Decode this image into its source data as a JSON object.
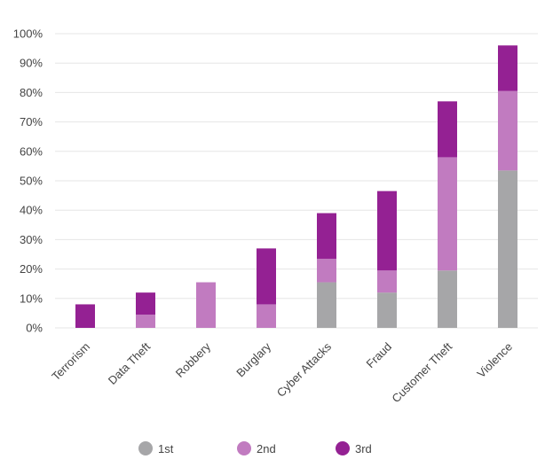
{
  "chart_data": {
    "type": "bar",
    "stacked": true,
    "categories": [
      "Terrorism",
      "Data Theft",
      "Robbery",
      "Burglary",
      "Cyber Attacks",
      "Fraud",
      "Customer Theft",
      "Violence"
    ],
    "series": [
      {
        "name": "1st",
        "color": "#a6a6a8",
        "values": [
          0,
          0,
          0,
          0,
          15.5,
          12,
          19.5,
          53.5
        ]
      },
      {
        "name": "2nd",
        "color": "#c17bc0",
        "values": [
          0,
          4.5,
          15.5,
          8,
          8,
          7.5,
          38.5,
          27
        ]
      },
      {
        "name": "3rd",
        "color": "#942193",
        "values": [
          8,
          7.5,
          0,
          19,
          15.5,
          27,
          19,
          15.5
        ]
      }
    ],
    "yticks": [
      "0%",
      "10%",
      "20%",
      "30%",
      "40%",
      "50%",
      "60%",
      "70%",
      "80%",
      "90%",
      "100%"
    ],
    "ylim": [
      0,
      100
    ],
    "title": "",
    "xlabel": "",
    "ylabel": "",
    "grid": true,
    "legend": "bottom-center"
  }
}
